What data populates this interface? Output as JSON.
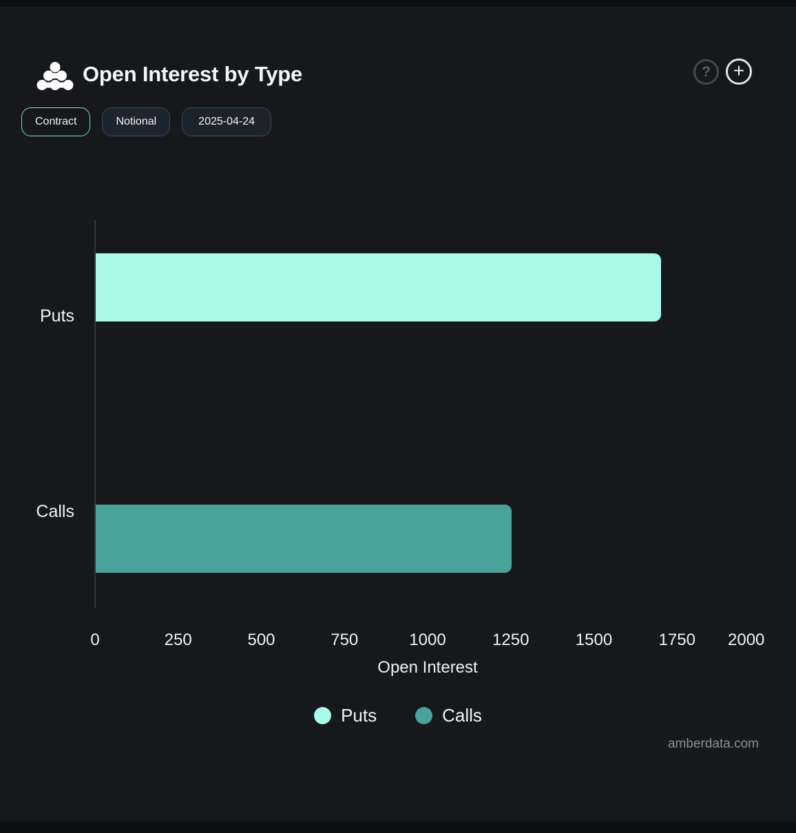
{
  "header": {
    "title": "Open Interest by Type",
    "help_label": "?",
    "add_label": "+"
  },
  "toolbar": {
    "buttons": [
      {
        "label": "Contract",
        "active": true
      },
      {
        "label": "Notional",
        "active": false
      },
      {
        "label": "2025-04-24",
        "active": false
      }
    ]
  },
  "colors": {
    "background": "#17181B",
    "frame": "#0D0E10",
    "accent": "#67E8D4",
    "axis_line": "#36383C",
    "puts": "#A9FAEB",
    "calls": "#4AA29B",
    "muted_text": "#8A8E96"
  },
  "chart_data": {
    "type": "bar",
    "orientation": "horizontal",
    "title": "Open Interest by Type",
    "categories": [
      "Puts",
      "Calls"
    ],
    "series": [
      {
        "name": "Puts",
        "value": 1700,
        "color": "#A9FAEB"
      },
      {
        "name": "Calls",
        "value": 1250,
        "color": "#4AA29B"
      }
    ],
    "xlabel": "Open Interest",
    "xlim": [
      0,
      2000
    ],
    "x_ticks": [
      0,
      250,
      500,
      750,
      1000,
      1250,
      1500,
      1750,
      2000
    ],
    "grid": false,
    "legend_position": "bottom"
  },
  "watermark": "amberdata.com"
}
